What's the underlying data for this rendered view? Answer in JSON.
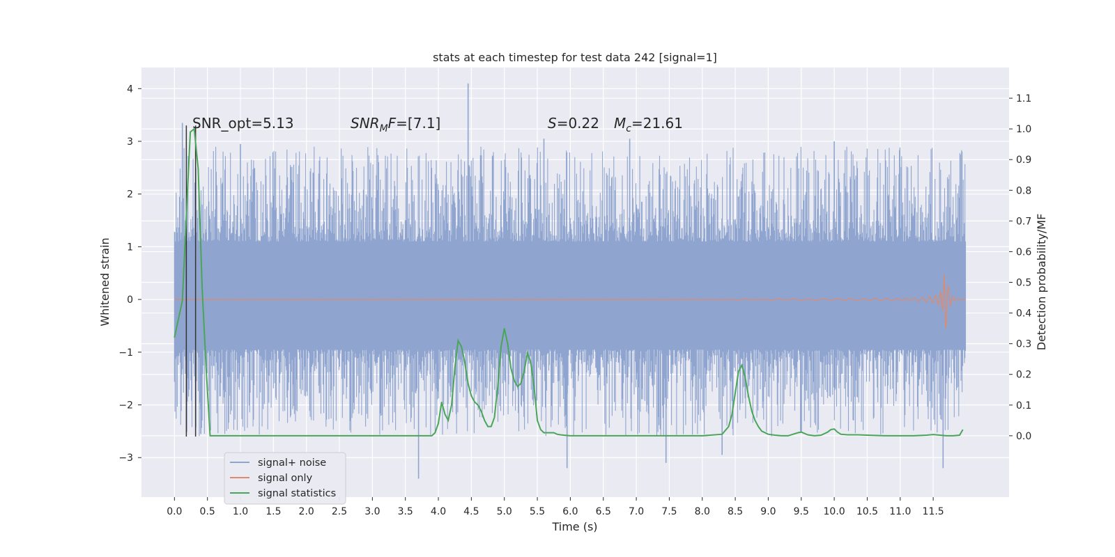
{
  "chart_data": {
    "type": "line",
    "title": "stats at each timestep for test data 242 [signal=1]",
    "xlabel": "Time (s)",
    "ylabel_left": "Whitened strain",
    "ylabel_right": "Detection probability/MF",
    "xlim": [
      -0.5,
      12.65
    ],
    "ylim_left": [
      -3.75,
      4.4
    ],
    "ylim_right": [
      -0.2,
      1.2
    ],
    "x_ticks": [
      0.0,
      0.5,
      1.0,
      1.5,
      2.0,
      2.5,
      3.0,
      3.5,
      4.0,
      4.5,
      5.0,
      5.5,
      6.0,
      6.5,
      7.0,
      7.5,
      8.0,
      8.5,
      9.0,
      9.5,
      10.0,
      10.5,
      11.0,
      11.5
    ],
    "x_tick_labels": [
      "0.0",
      "0.5",
      "1.0",
      "1.5",
      "2.0",
      "2.5",
      "3.0",
      "3.5",
      "4.0",
      "4.5",
      "5.0",
      "5.5",
      "6.0",
      "6.5",
      "7.0",
      "7.5",
      "8.0",
      "8.5",
      "9.0",
      "9.5",
      "10.0",
      "10.5",
      "11.0",
      "11.5"
    ],
    "y_ticks_left": [
      -3,
      -2,
      -1,
      0,
      1,
      2,
      3,
      4
    ],
    "y_tick_labels_left": [
      "−3",
      "−2",
      "−1",
      "0",
      "1",
      "2",
      "3",
      "4"
    ],
    "y_ticks_right": [
      0.0,
      0.1,
      0.2,
      0.3,
      0.4,
      0.5,
      0.6,
      0.7,
      0.8,
      0.9,
      1.0,
      1.1
    ],
    "y_tick_labels_right": [
      "0.0",
      "0.1",
      "0.2",
      "0.3",
      "0.4",
      "0.5",
      "0.6",
      "0.7",
      "0.8",
      "0.9",
      "1.0",
      "1.1"
    ],
    "grid": true,
    "legend_position": "lower-left",
    "annotations": [
      {
        "text": "SNR_opt=5.13"
      },
      {
        "text": "SNRMF=[7.1]"
      },
      {
        "text": "S=0.22"
      },
      {
        "text": "Mc=21.61"
      }
    ],
    "series": [
      {
        "name": "signal+ noise",
        "color": "#8fa5cf",
        "kind": "noise-band",
        "x_range": [
          0.0,
          11.99
        ],
        "core_band": [
          -0.85,
          0.95
        ],
        "typical_extent": [
          -1.8,
          2.2
        ],
        "peaks": [
          {
            "x": 0.12,
            "y": 3.35
          },
          {
            "x": 4.45,
            "y": 4.1
          },
          {
            "x": 3.7,
            "y": -3.4
          },
          {
            "x": 11.65,
            "y": -3.2
          },
          {
            "x": 5.95,
            "y": -3.2
          },
          {
            "x": 6.9,
            "y": 3.05
          },
          {
            "x": 10.0,
            "y": 3.0
          },
          {
            "x": 5.6,
            "y": 3.05
          },
          {
            "x": 1.0,
            "y": 2.95
          },
          {
            "x": 0.4,
            "y": -2.55
          },
          {
            "x": 7.45,
            "y": -3.1
          },
          {
            "x": 8.3,
            "y": -2.95
          }
        ]
      },
      {
        "name": "signal only",
        "color": "#dd8a6e",
        "kind": "chirp",
        "x_range": [
          0.0,
          11.99
        ],
        "merger_time": 11.67,
        "peak_amplitude": 0.9
      },
      {
        "name": "signal statistics",
        "color": "#4aa559",
        "axis": "right",
        "x": [
          0.0,
          0.06,
          0.12,
          0.18,
          0.24,
          0.3,
          0.36,
          0.42,
          0.48,
          0.54,
          3.9,
          3.95,
          4.0,
          4.05,
          4.1,
          4.15,
          4.2,
          4.25,
          4.3,
          4.35,
          4.4,
          4.45,
          4.5,
          4.55,
          4.6,
          4.65,
          4.7,
          4.75,
          4.8,
          4.85,
          4.9,
          4.95,
          5.0,
          5.05,
          5.1,
          5.15,
          5.2,
          5.25,
          5.3,
          5.35,
          5.4,
          5.45,
          5.5,
          5.55,
          5.6,
          5.65,
          5.7,
          5.75,
          5.8,
          5.85,
          5.9,
          6.0,
          6.5,
          7.0,
          7.5,
          8.0,
          8.3,
          8.4,
          8.45,
          8.5,
          8.55,
          8.6,
          8.65,
          8.7,
          8.75,
          8.8,
          8.85,
          8.9,
          9.0,
          9.1,
          9.2,
          9.3,
          9.45,
          9.5,
          9.6,
          9.7,
          9.8,
          9.9,
          9.95,
          10.0,
          10.05,
          10.1,
          10.2,
          10.35,
          10.5,
          10.8,
          11.0,
          11.2,
          11.4,
          11.5,
          11.6,
          11.7,
          11.8,
          11.9,
          11.95
        ],
        "values": [
          0.32,
          0.38,
          0.44,
          0.72,
          0.99,
          1.0,
          0.87,
          0.48,
          0.22,
          0.0,
          0.0,
          0.01,
          0.04,
          0.11,
          0.07,
          0.05,
          0.1,
          0.22,
          0.31,
          0.29,
          0.24,
          0.17,
          0.13,
          0.11,
          0.1,
          0.08,
          0.05,
          0.03,
          0.03,
          0.06,
          0.16,
          0.29,
          0.35,
          0.3,
          0.22,
          0.18,
          0.16,
          0.17,
          0.21,
          0.27,
          0.24,
          0.16,
          0.05,
          0.02,
          0.01,
          0.01,
          0.01,
          0.01,
          0.005,
          0.003,
          0.002,
          0.0,
          0.0,
          0.0,
          0.0,
          0.0,
          0.005,
          0.03,
          0.07,
          0.14,
          0.21,
          0.23,
          0.19,
          0.13,
          0.08,
          0.05,
          0.03,
          0.015,
          0.005,
          0.002,
          0.0,
          0.0,
          0.01,
          0.012,
          0.003,
          0.0,
          0.002,
          0.012,
          0.02,
          0.022,
          0.012,
          0.005,
          0.003,
          0.003,
          0.002,
          0.0,
          0.0,
          0.0,
          0.002,
          0.004,
          0.002,
          0.0,
          0.0,
          0.002,
          0.02
        ]
      }
    ],
    "vertical_markers": {
      "color": "#333333",
      "x": [
        0.18,
        0.32
      ],
      "y_bottom": -2.6,
      "y_top": 3.3
    }
  }
}
